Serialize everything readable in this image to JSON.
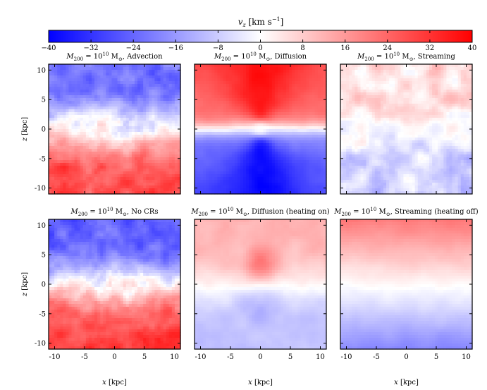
{
  "chart_data": {
    "type": "heatmap",
    "colorbar": {
      "label_var": "v",
      "label_sub": "z",
      "label_unit": " [km s",
      "label_exp": "−1",
      "label_end": "]",
      "ticks": [
        "−40",
        "−32",
        "−24",
        "−16",
        "−8",
        "0",
        "8",
        "16",
        "24",
        "32",
        "40"
      ],
      "tick_values": [
        -40,
        -32,
        -24,
        -16,
        -8,
        0,
        8,
        16,
        24,
        32,
        40
      ],
      "range": [
        -40,
        40
      ],
      "colors": {
        "low": "#0000ff",
        "mid": "#ffffff",
        "high": "#ff0000"
      }
    },
    "xlabel_var": "x",
    "xlabel_unit": " [kpc]",
    "ylabel_var": "z",
    "ylabel_unit": " [kpc]",
    "xticks": [
      "-10",
      "-5",
      "0",
      "5",
      "10"
    ],
    "xtick_values": [
      -10,
      -5,
      0,
      5,
      10
    ],
    "yticks": [
      "10",
      "5",
      "0",
      "-5",
      "-10"
    ],
    "ytick_values": [
      10,
      5,
      0,
      -5,
      -10
    ],
    "xlim": [
      -11,
      11
    ],
    "ylim": [
      -11,
      11
    ],
    "panels": [
      {
        "title_var": "M",
        "title_sub": "200",
        "title_eq": " = 10",
        "title_exp": "10",
        "title_unit": " M",
        "title_sun": "⊙",
        "title_rest": ", Advection",
        "pattern": "advection",
        "top_mean": -22,
        "bottom_mean": 28,
        "noise": 9
      },
      {
        "title_var": "M",
        "title_sub": "200",
        "title_eq": " = 10",
        "title_exp": "10",
        "title_unit": " M",
        "title_sun": "⊙",
        "title_rest": ", Diffusion",
        "pattern": "diffusion_cone",
        "top_mean": 38,
        "bottom_mean": -38,
        "noise": 3
      },
      {
        "title_var": "M",
        "title_sub": "200",
        "title_eq": " = 10",
        "title_exp": "10",
        "title_unit": " M",
        "title_sun": "⊙",
        "title_rest": ", Streaming",
        "pattern": "streaming",
        "top_mean": 6,
        "bottom_mean": -8,
        "noise": 10
      },
      {
        "title_var": "M",
        "title_sub": "200",
        "title_eq": " = 10",
        "title_exp": "10",
        "title_unit": " M",
        "title_sun": "⊙",
        "title_rest": ", No CRs",
        "pattern": "advection",
        "top_mean": -26,
        "bottom_mean": 30,
        "noise": 9
      },
      {
        "title_var": "M",
        "title_sub": "200",
        "title_eq": " = 10",
        "title_exp": "10",
        "title_unit": " M",
        "title_sun": "⊙",
        "title_rest": ", Diffusion (heating on)",
        "pattern": "gradient_blob",
        "top_mean": 12,
        "bottom_mean": -10,
        "noise": 3
      },
      {
        "title_var": "M",
        "title_sub": "200",
        "title_eq": " = 10",
        "title_exp": "10",
        "title_unit": " M",
        "title_sun": "⊙",
        "title_rest": ", Streaming (heating off)",
        "pattern": "gradient",
        "top_mean": 20,
        "bottom_mean": -18,
        "noise": 2
      }
    ]
  }
}
